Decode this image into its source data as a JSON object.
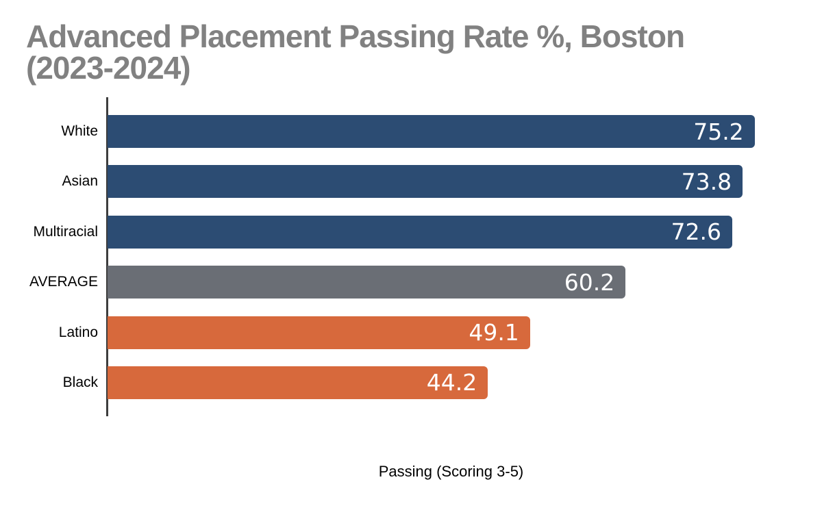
{
  "chart_data": {
    "type": "bar",
    "orientation": "horizontal",
    "title": "Advanced Placement Passing Rate %, Boston (2023-2024)",
    "title_lines": [
      "Advanced Placement Passing Rate %, Boston",
      "(2023-2024)"
    ],
    "xlabel": "Passing (Scoring 3-5)",
    "categories": [
      "White",
      "Asian",
      "Multiracial",
      "AVERAGE",
      "Latino",
      "Black"
    ],
    "values": [
      75.2,
      73.8,
      72.6,
      60.2,
      49.1,
      44.2
    ],
    "value_labels": [
      "75.2",
      "73.8",
      "72.6",
      "60.2",
      "49.1",
      "44.2"
    ],
    "bar_colors": [
      "#2c4c73",
      "#2c4c73",
      "#2c4c73",
      "#6a6e75",
      "#d7693c",
      "#d7693c"
    ],
    "xlim": [
      0,
      80
    ],
    "grid": false,
    "legend_position": "none",
    "colors": {
      "series_blue": "#2c4c73",
      "series_gray": "#6a6e75",
      "series_orange": "#d7693c",
      "title_text": "#818181",
      "axis_line": "#3d3d3d",
      "value_text": "#ffffff",
      "category_text": "#000000",
      "background": "#ffffff"
    }
  }
}
